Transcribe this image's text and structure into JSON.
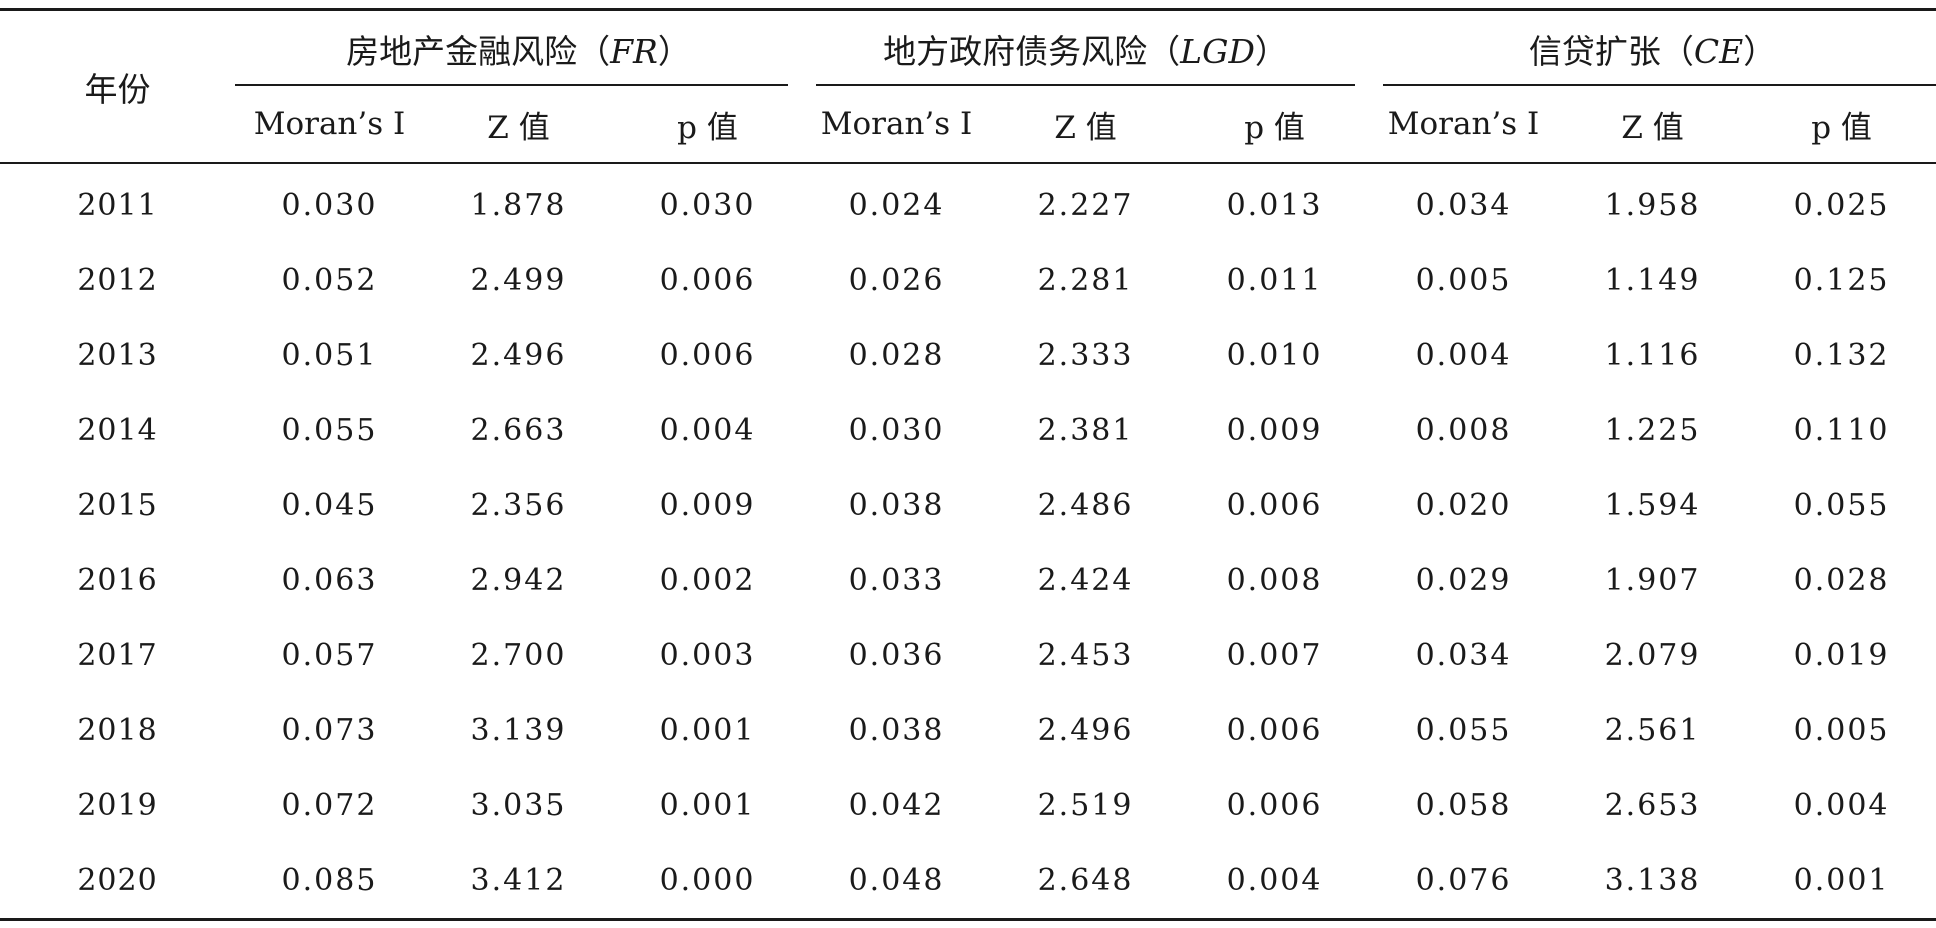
{
  "table": {
    "year_header": "年份",
    "groups": [
      {
        "label_prefix": "房地产金融风险（",
        "label_abbr": "FR",
        "label_suffix": "）"
      },
      {
        "label_prefix": "地方政府债务风险（",
        "label_abbr": "LGD",
        "label_suffix": "）"
      },
      {
        "label_prefix": "信贷扩张（",
        "label_abbr": "CE",
        "label_suffix": "）"
      }
    ],
    "sub_headers": [
      "Moran’s I",
      "Z 值",
      "p 值"
    ],
    "rows": [
      {
        "year": "2011",
        "values": [
          "0.030",
          "1.878",
          "0.030",
          "0.024",
          "2.227",
          "0.013",
          "0.034",
          "1.958",
          "0.025"
        ]
      },
      {
        "year": "2012",
        "values": [
          "0.052",
          "2.499",
          "0.006",
          "0.026",
          "2.281",
          "0.011",
          "0.005",
          "1.149",
          "0.125"
        ]
      },
      {
        "year": "2013",
        "values": [
          "0.051",
          "2.496",
          "0.006",
          "0.028",
          "2.333",
          "0.010",
          "0.004",
          "1.116",
          "0.132"
        ]
      },
      {
        "year": "2014",
        "values": [
          "0.055",
          "2.663",
          "0.004",
          "0.030",
          "2.381",
          "0.009",
          "0.008",
          "1.225",
          "0.110"
        ]
      },
      {
        "year": "2015",
        "values": [
          "0.045",
          "2.356",
          "0.009",
          "0.038",
          "2.486",
          "0.006",
          "0.020",
          "1.594",
          "0.055"
        ]
      },
      {
        "year": "2016",
        "values": [
          "0.063",
          "2.942",
          "0.002",
          "0.033",
          "2.424",
          "0.008",
          "0.029",
          "1.907",
          "0.028"
        ]
      },
      {
        "year": "2017",
        "values": [
          "0.057",
          "2.700",
          "0.003",
          "0.036",
          "2.453",
          "0.007",
          "0.034",
          "2.079",
          "0.019"
        ]
      },
      {
        "year": "2018",
        "values": [
          "0.073",
          "3.139",
          "0.001",
          "0.038",
          "2.496",
          "0.006",
          "0.055",
          "2.561",
          "0.005"
        ]
      },
      {
        "year": "2019",
        "values": [
          "0.072",
          "3.035",
          "0.001",
          "0.042",
          "2.519",
          "0.006",
          "0.058",
          "2.653",
          "0.004"
        ]
      },
      {
        "year": "2020",
        "values": [
          "0.085",
          "3.412",
          "0.000",
          "0.048",
          "2.648",
          "0.004",
          "0.076",
          "3.138",
          "0.001"
        ]
      }
    ]
  }
}
